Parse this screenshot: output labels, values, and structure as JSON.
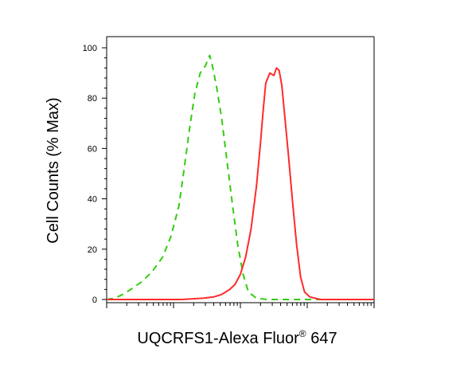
{
  "chart_data": {
    "type": "line",
    "title": "",
    "xlabel_text": "UQCRFS1-Alexa Fluor",
    "xlabel_sup": "®",
    "xlabel_tail": " 647",
    "ylabel": "Cell Counts (% Max)",
    "ylim": [
      0,
      100
    ],
    "y_ticks": [
      "0",
      "20",
      "40",
      "60",
      "80",
      "100"
    ],
    "x_scale": "log",
    "x_tick_labels_shown": false,
    "grid": false,
    "legend": "none",
    "series": [
      {
        "color": "#33cc11",
        "dash": "dashed",
        "points": [
          [
            0.0,
            0
          ],
          [
            0.03,
            0.5
          ],
          [
            0.06,
            2
          ],
          [
            0.09,
            4
          ],
          [
            0.13,
            7
          ],
          [
            0.17,
            11
          ],
          [
            0.21,
            17
          ],
          [
            0.24,
            25
          ],
          [
            0.27,
            37
          ],
          [
            0.29,
            52
          ],
          [
            0.31,
            68
          ],
          [
            0.33,
            82
          ],
          [
            0.35,
            90
          ],
          [
            0.37,
            93
          ],
          [
            0.385,
            97
          ],
          [
            0.395,
            93
          ],
          [
            0.41,
            85
          ],
          [
            0.43,
            72
          ],
          [
            0.45,
            55
          ],
          [
            0.47,
            38
          ],
          [
            0.49,
            22
          ],
          [
            0.51,
            10
          ],
          [
            0.53,
            3
          ],
          [
            0.56,
            0.5
          ],
          [
            0.6,
            0
          ],
          [
            1.0,
            0
          ]
        ]
      },
      {
        "color": "#ff2a2a",
        "dash": "solid",
        "points": [
          [
            0.0,
            0
          ],
          [
            0.28,
            0
          ],
          [
            0.36,
            0.5
          ],
          [
            0.4,
            1
          ],
          [
            0.43,
            2
          ],
          [
            0.46,
            4
          ],
          [
            0.48,
            6
          ],
          [
            0.5,
            10
          ],
          [
            0.52,
            17
          ],
          [
            0.54,
            28
          ],
          [
            0.56,
            45
          ],
          [
            0.575,
            62
          ],
          [
            0.585,
            75
          ],
          [
            0.595,
            86
          ],
          [
            0.61,
            90
          ],
          [
            0.625,
            89
          ],
          [
            0.635,
            92
          ],
          [
            0.645,
            91
          ],
          [
            0.655,
            85
          ],
          [
            0.665,
            74
          ],
          [
            0.68,
            57
          ],
          [
            0.695,
            39
          ],
          [
            0.71,
            22
          ],
          [
            0.725,
            9
          ],
          [
            0.74,
            3
          ],
          [
            0.76,
            1
          ],
          [
            0.8,
            0
          ],
          [
            1.0,
            0
          ]
        ]
      }
    ]
  }
}
